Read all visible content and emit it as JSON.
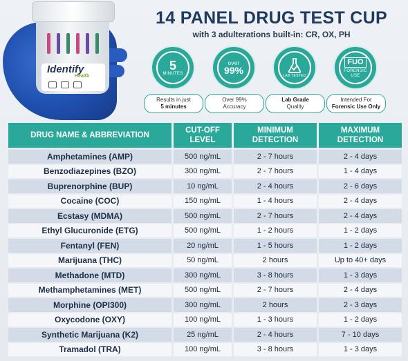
{
  "header": {
    "title": "14 PANEL DRUG TEST CUP",
    "subtitle": "with 3 adulterations built-in: CR, OX, PH"
  },
  "product": {
    "brand": "Identify",
    "brand_sub": "Health",
    "strip_colors": [
      "#c94a7c",
      "#6b4ba6",
      "#3a8a6a",
      "#c94a7c",
      "#6b4ba6",
      "#3a8a6a"
    ]
  },
  "badges": [
    {
      "icon": "clock-5-minutes-icon",
      "big": "5",
      "small": "MINUTES",
      "caption_line1": "Results in just",
      "caption_line2": "5 minutes"
    },
    {
      "icon": "accuracy-99-icon",
      "small": "over",
      "big": "99%",
      "caption_line1": "Over 99%",
      "caption_line2": "Accuracy"
    },
    {
      "icon": "lab-tested-icon",
      "small": "LAB TESTED",
      "caption_line1": "Lab Grade",
      "caption_line2": "Quality"
    },
    {
      "icon": "forensic-use-icon",
      "big": "FUO",
      "small": "FORENSIC USE",
      "caption_line1": "Intended For",
      "caption_line2": "Forensic Use Only"
    }
  ],
  "accent_color": "#2aa99a",
  "table": {
    "headers": [
      "DRUG NAME & ABBREVIATION",
      "CUT-OFF LEVEL",
      "MINIMUM DETECTION",
      "MAXIMUM DETECTION"
    ],
    "rows": [
      [
        "Amphetamines (AMP)",
        "500 ng/mL",
        "2 - 7 hours",
        "2 - 4 days"
      ],
      [
        "Benzodiazepines (BZO)",
        "300 ng/mL",
        "2 - 7 hours",
        "1 - 4 days"
      ],
      [
        "Buprenorphine (BUP)",
        "10 ng/mL",
        "2 - 4 hours",
        "2 - 6 days"
      ],
      [
        "Cocaine (COC)",
        "150 ng/mL",
        "1 - 4 hours",
        "2 - 4 days"
      ],
      [
        "Ecstasy (MDMA)",
        "500 ng/mL",
        "2 - 7 hours",
        "2 - 4 days"
      ],
      [
        "Ethyl Glucuronide (ETG)",
        "500 ng/mL",
        "1 - 2 hours",
        "1 - 2 days"
      ],
      [
        "Fentanyl (FEN)",
        "20 ng/mL",
        "1 - 5 hours",
        "1 - 2 days"
      ],
      [
        "Marijuana (THC)",
        "50 ng/mL",
        "2 hours",
        "Up to 40+ days"
      ],
      [
        "Methadone (MTD)",
        "300 ng/mL",
        "3 - 8 hours",
        "1 - 3 days"
      ],
      [
        "Methamphetamines (MET)",
        "500 ng/mL",
        "2 - 7 hours",
        "2 - 4 days"
      ],
      [
        "Morphine (OPI300)",
        "300 ng/mL",
        "2 hours",
        "2 - 3 days"
      ],
      [
        "Oxycodone (OXY)",
        "100 ng/mL",
        "1 - 3 hours",
        "1 - 2 days"
      ],
      [
        "Synthetic Marijuana (K2)",
        "25 ng/mL",
        "2 - 4 hours",
        "7 - 10 days"
      ],
      [
        "Tramadol (TRA)",
        "100 ng/mL",
        "3 - 8 hours",
        "1 - 3 days"
      ]
    ]
  }
}
